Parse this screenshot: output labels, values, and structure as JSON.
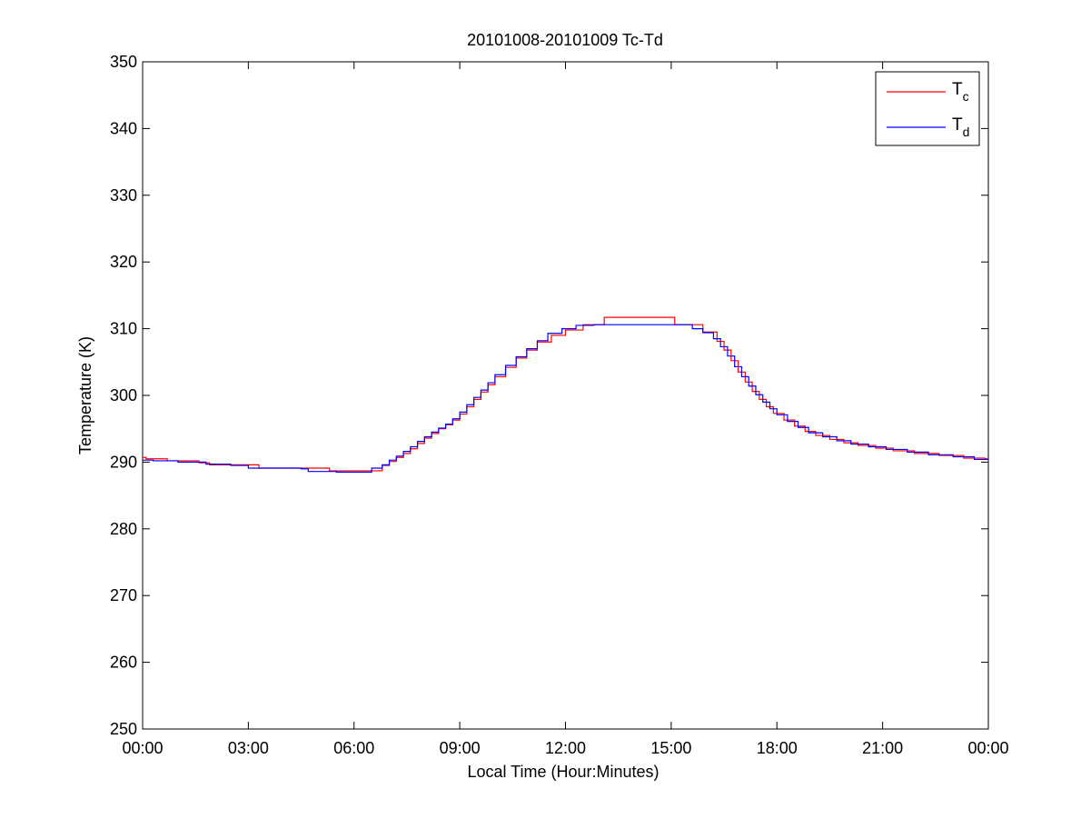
{
  "chart_data": {
    "type": "line",
    "title": "20101008-20101009 Tc-Td",
    "xlabel": "Local Time (Hour:Minutes)",
    "ylabel": "Temperature (K)",
    "xlim": [
      0,
      24
    ],
    "ylim": [
      250,
      350
    ],
    "x_ticks": [
      0,
      3,
      6,
      9,
      12,
      15,
      18,
      21,
      24
    ],
    "x_tick_labels": [
      "00:00",
      "03:00",
      "06:00",
      "09:00",
      "12:00",
      "15:00",
      "18:00",
      "21:00",
      "00:00"
    ],
    "y_ticks": [
      250,
      260,
      270,
      280,
      290,
      300,
      310,
      320,
      330,
      340,
      350
    ],
    "y_tick_labels": [
      "250",
      "260",
      "270",
      "280",
      "290",
      "300",
      "310",
      "320",
      "330",
      "340",
      "350"
    ],
    "grid": false,
    "legend": "top-right",
    "step": true,
    "series": [
      {
        "name": "Tc",
        "name_main": "T",
        "name_sub": "c",
        "color": "#ff0000",
        "x": [
          0,
          0.1,
          0.7,
          1.6,
          1.9,
          2.5,
          2.9,
          3.3,
          4.8,
          5.3,
          6.4,
          6.8,
          7.0,
          7.2,
          7.4,
          7.6,
          7.8,
          8.0,
          8.2,
          8.4,
          8.6,
          8.8,
          9.0,
          9.2,
          9.4,
          9.6,
          9.8,
          10.0,
          10.3,
          10.6,
          10.9,
          11.2,
          11.6,
          12.0,
          12.5,
          13.1,
          15.1,
          15.4,
          15.9,
          16.3,
          16.5,
          16.7,
          16.9,
          17.1,
          17.3,
          17.5,
          17.7,
          17.9,
          18.2,
          18.5,
          18.8,
          19.1,
          19.5,
          19.9,
          20.3,
          20.8,
          21.3,
          21.9,
          22.6,
          23.3,
          23.9,
          24
        ],
        "y": [
          290.7,
          290.5,
          290.2,
          289.9,
          289.6,
          289.6,
          289.6,
          289.1,
          289.1,
          288.7,
          288.7,
          289.5,
          290.1,
          290.7,
          291.3,
          292.0,
          292.8,
          293.6,
          294.3,
          295.0,
          295.6,
          296.3,
          297.2,
          298.3,
          299.4,
          300.5,
          301.6,
          302.8,
          304.2,
          305.6,
          306.8,
          308.0,
          309.0,
          309.8,
          310.6,
          311.7,
          310.6,
          310.6,
          309.5,
          308.1,
          306.8,
          305.2,
          303.5,
          302.0,
          300.6,
          299.4,
          298.3,
          297.3,
          296.3,
          295.4,
          294.6,
          294.0,
          293.4,
          292.9,
          292.5,
          292.1,
          291.7,
          291.3,
          291.0,
          290.6,
          290.5,
          290.5
        ]
      },
      {
        "name": "Td",
        "name_main": "T",
        "name_sub": "d",
        "color": "#0000ff",
        "x": [
          0,
          0.3,
          1.0,
          1.8,
          2.5,
          3.0,
          4.5,
          4.7,
          5.5,
          6.2,
          6.5,
          6.8,
          7.0,
          7.2,
          7.4,
          7.6,
          7.8,
          8.0,
          8.2,
          8.4,
          8.6,
          8.8,
          9.0,
          9.2,
          9.4,
          9.6,
          9.8,
          10.0,
          10.3,
          10.6,
          10.9,
          11.2,
          11.5,
          11.9,
          12.3,
          12.8,
          15.6,
          15.9,
          16.2,
          16.4,
          16.6,
          16.8,
          17.0,
          17.2,
          17.4,
          17.6,
          17.8,
          18.0,
          18.3,
          18.6,
          18.9,
          19.3,
          19.7,
          20.1,
          20.6,
          21.1,
          21.7,
          22.3,
          23.0,
          23.6,
          24
        ],
        "y": [
          290.3,
          290.2,
          290.0,
          289.7,
          289.5,
          289.1,
          289.0,
          288.6,
          288.5,
          288.5,
          289.1,
          289.6,
          290.3,
          290.9,
          291.6,
          292.3,
          293.1,
          293.8,
          294.5,
          295.1,
          295.7,
          296.5,
          297.5,
          298.6,
          299.7,
          300.8,
          301.9,
          303.1,
          304.5,
          305.8,
          307.0,
          308.2,
          309.3,
          310.0,
          310.5,
          310.6,
          310.0,
          309.4,
          308.5,
          307.3,
          305.9,
          304.3,
          302.8,
          301.4,
          300.1,
          299.0,
          298.0,
          297.1,
          296.1,
          295.2,
          294.4,
          293.8,
          293.2,
          292.7,
          292.3,
          291.9,
          291.5,
          291.1,
          290.8,
          290.4,
          290.3
        ]
      }
    ]
  }
}
